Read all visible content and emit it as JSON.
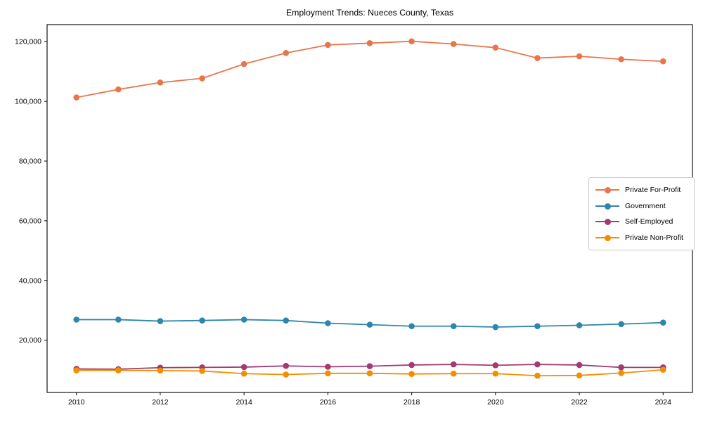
{
  "title": "Employment Trends: Nueces County, Texas",
  "chart_data": {
    "type": "line",
    "title": "Employment Trends: Nueces County, Texas",
    "xlabel": "",
    "ylabel": "",
    "x": [
      2010,
      2011,
      2012,
      2013,
      2014,
      2015,
      2016,
      2017,
      2018,
      2019,
      2020,
      2021,
      2022,
      2023,
      2024
    ],
    "series": [
      {
        "name": "Private For-Profit",
        "color": "#E8764C",
        "values": [
          101300,
          104000,
          106300,
          107700,
          112500,
          116200,
          118900,
          119500,
          120100,
          119200,
          118000,
          114500,
          115100,
          114100,
          113400
        ]
      },
      {
        "name": "Government",
        "color": "#2E86AB",
        "values": [
          26900,
          26900,
          26400,
          26600,
          26900,
          26600,
          25700,
          25200,
          24700,
          24700,
          24400,
          24700,
          25000,
          25400,
          25900
        ]
      },
      {
        "name": "Self-Employed",
        "color": "#A23B72",
        "values": [
          10400,
          10300,
          10800,
          10900,
          11000,
          11400,
          11100,
          11300,
          11700,
          11900,
          11600,
          11900,
          11700,
          10900,
          10900
        ]
      },
      {
        "name": "Private Non-Profit",
        "color": "#F18F01",
        "values": [
          9900,
          9900,
          9800,
          9700,
          8800,
          8500,
          8900,
          8900,
          8700,
          8800,
          8800,
          8100,
          8200,
          9000,
          10100
        ]
      }
    ],
    "xticks": [
      {
        "value": 2010,
        "label": "2010"
      },
      {
        "value": 2012,
        "label": "2012"
      },
      {
        "value": 2014,
        "label": "2014"
      },
      {
        "value": 2016,
        "label": "2016"
      },
      {
        "value": 2018,
        "label": "2018"
      },
      {
        "value": 2020,
        "label": "2020"
      },
      {
        "value": 2022,
        "label": "2022"
      },
      {
        "value": 2024,
        "label": "2024"
      }
    ],
    "yticks": [
      {
        "value": 20000,
        "label": "20,000"
      },
      {
        "value": 40000,
        "label": "40,000"
      },
      {
        "value": 60000,
        "label": "60,000"
      },
      {
        "value": 80000,
        "label": "80,000"
      },
      {
        "value": 100000,
        "label": "100,000"
      },
      {
        "value": 120000,
        "label": "120,000"
      }
    ],
    "xlim": [
      2009.3,
      2024.7
    ],
    "ylim": [
      2500,
      125700
    ],
    "grid": false,
    "legend_position": "center right",
    "axis_color": "#000000",
    "background_color": "#ffffff"
  }
}
